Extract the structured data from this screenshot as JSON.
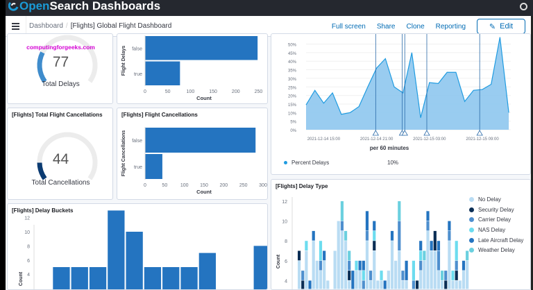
{
  "app": {
    "title": "OpenSearch Dashboards",
    "title_prefix": "Open",
    "title_suffix": "Search Dashboards"
  },
  "nav": {
    "breadcrumb": [
      "Dashboard",
      "[Flights] Global Flight Dashboard"
    ],
    "actions": [
      "Full screen",
      "Share",
      "Clone",
      "Reporting"
    ],
    "edit_label": "Edit"
  },
  "colors": {
    "accent": "#006bb4",
    "bar": "#2474c0",
    "area": "#8ec7ee",
    "line": "#1f9be0"
  },
  "panels": {
    "total_delays": {
      "value": "77",
      "label": "Total Delays",
      "watermark": "computingforgeeks.com",
      "fraction": 0.25
    },
    "flight_delays": {
      "ylabel": "Flight Delays",
      "xlabel": "Count"
    },
    "total_cancellations": {
      "title": "[Flights] Total Flight Cancellations",
      "value": "44",
      "label": "Total Cancellations",
      "fraction": 0.14
    },
    "flight_cancellations": {
      "title": "[Flights] Flight Cancellations",
      "ylabel": "Flight Cancellations",
      "xlabel": "Count"
    },
    "delay_buckets": {
      "title": "[Flights] Delay Buckets",
      "ylabel": "Count"
    },
    "delays_over_time": {
      "xlabel": "per 60 minutes",
      "legend": "Percent Delays",
      "legend_value": "10%"
    },
    "delay_type": {
      "title": "[Flights] Delay Type",
      "ylabel": "Count"
    }
  },
  "chart_data": [
    {
      "type": "bar",
      "orientation": "horizontal",
      "categories": [
        "false",
        "true"
      ],
      "values": [
        248,
        77
      ],
      "xlabel": "Count",
      "ylabel": "Flight Delays",
      "xticks": [
        "0",
        "50",
        "100",
        "150",
        "200",
        "250"
      ],
      "xlim": [
        0,
        260
      ]
    },
    {
      "type": "bar",
      "orientation": "horizontal",
      "categories": [
        "false",
        "true"
      ],
      "values": [
        281,
        44
      ],
      "xlabel": "Count",
      "ylabel": "Flight Cancellations",
      "xticks": [
        "0",
        "50",
        "100",
        "150",
        "200",
        "250",
        "300"
      ],
      "xlim": [
        0,
        300
      ]
    },
    {
      "type": "bar",
      "values": [
        0,
        5,
        5,
        5,
        13,
        10,
        5,
        5,
        5,
        7,
        0,
        0,
        8
      ],
      "ylabel": "Count",
      "yticks": [
        "4",
        "6",
        "8",
        "10",
        "12"
      ],
      "ylim": [
        0,
        13.5
      ]
    },
    {
      "type": "area",
      "x": [
        "2021-12-14 13:00",
        "14:00",
        "15:00",
        "16:00",
        "17:00",
        "18:00",
        "19:00",
        "20:00",
        "21:00",
        "22:00",
        "23:00",
        "2021-12-15 00:00",
        "01:00",
        "02:00",
        "03:00",
        "04:00",
        "05:00",
        "06:00",
        "07:00",
        "08:00",
        "09:00",
        "10:00",
        "11:00",
        "12:00"
      ],
      "values": [
        14.5,
        23,
        15.5,
        21.5,
        9,
        10,
        13.5,
        25,
        36,
        41.5,
        25,
        21.5,
        45,
        7,
        27.5,
        27,
        33.5,
        33.5,
        16.5,
        23,
        23.5,
        26.5,
        54,
        10
      ],
      "xticks": [
        "2021-12-14 15:00",
        "2021-12-14 21:00",
        "2021-12-15 03:00",
        "2021-12-15 09:00"
      ],
      "yticks": [
        "0%",
        "5%",
        "10%",
        "15%",
        "20%",
        "25%",
        "30%",
        "35%",
        "40%",
        "45%",
        "50%"
      ],
      "ylim": [
        0,
        55
      ],
      "annotations_hours_index": [
        7.9,
        10.9,
        11.2,
        13.7,
        19.7
      ],
      "xlabel": "per 60 minutes",
      "series": [
        {
          "name": "Percent Delays"
        }
      ]
    },
    {
      "type": "bar",
      "stacked": true,
      "ylabel": "Count",
      "yticks": [
        "4",
        "6",
        "8",
        "10",
        "12"
      ],
      "ylim": [
        0,
        12
      ],
      "series": [
        {
          "name": "No Delay",
          "color": "#b9dcf3"
        },
        {
          "name": "Security Delay",
          "color": "#0b2e55"
        },
        {
          "name": "Carrier Delay",
          "color": "#4e8fce"
        },
        {
          "name": "NAS Delay",
          "color": "#6cdcef"
        },
        {
          "name": "Late Aircraft Delay",
          "color": "#2474c0"
        },
        {
          "name": "Weather Delay",
          "color": "#6bd0df"
        }
      ],
      "stacks": [
        [
          6,
          1,
          0,
          0,
          0,
          0
        ],
        [
          3,
          1,
          1,
          0,
          0,
          0
        ],
        [
          7,
          0,
          0,
          1,
          0,
          0
        ],
        [
          3,
          0,
          0,
          0,
          1,
          0
        ],
        [
          8,
          0,
          0,
          0,
          1,
          0
        ],
        [
          6,
          0,
          0,
          0,
          0,
          0
        ],
        [
          5,
          0,
          1,
          2,
          0,
          0
        ],
        [
          6,
          0,
          0,
          0,
          1,
          0
        ],
        [
          4,
          0,
          0,
          0,
          0,
          0
        ],
        [
          2,
          1,
          0,
          0,
          0,
          0
        ],
        [
          7,
          0,
          0,
          0,
          0,
          0
        ],
        [
          10,
          0,
          0,
          0,
          0,
          0
        ],
        [
          9,
          0,
          1,
          0,
          0,
          2
        ],
        [
          8,
          0,
          0,
          0,
          0,
          1
        ],
        [
          4,
          1,
          1,
          0,
          0,
          1
        ],
        [
          3,
          0,
          0,
          0,
          2,
          0
        ],
        [
          5,
          0,
          0,
          1,
          0,
          0
        ],
        [
          5,
          0,
          0,
          0,
          1,
          0
        ],
        [
          3,
          0,
          1,
          1,
          1,
          0
        ],
        [
          8,
          0,
          1,
          0,
          2,
          0
        ],
        [
          4,
          0,
          1,
          0,
          0,
          0
        ],
        [
          7,
          1,
          0,
          1,
          1,
          0
        ],
        [
          4,
          0,
          0,
          0,
          0,
          0
        ],
        [
          4,
          0,
          0,
          1,
          0,
          0
        ],
        [
          3,
          0,
          0,
          0,
          1,
          0
        ],
        [
          5,
          0,
          0,
          0,
          0,
          0
        ],
        [
          8,
          0,
          0,
          0,
          1,
          0
        ],
        [
          6,
          0,
          0,
          0,
          0,
          0
        ],
        [
          7,
          0,
          3,
          0,
          0,
          2
        ],
        [
          4,
          0,
          1,
          0,
          0,
          0
        ],
        [
          4,
          0,
          0,
          0,
          2,
          0
        ],
        [
          3,
          0,
          0,
          0,
          0,
          0
        ],
        [
          3,
          0,
          1,
          2,
          0,
          0
        ],
        [
          3,
          1,
          0,
          0,
          0,
          0
        ],
        [
          5,
          0,
          1,
          1,
          1,
          0
        ],
        [
          6,
          0,
          0,
          0,
          0,
          1
        ],
        [
          9,
          0,
          1,
          0,
          1,
          0
        ],
        [
          7,
          0,
          0,
          0,
          1,
          0
        ],
        [
          7,
          2,
          0,
          0,
          0,
          0
        ],
        [
          5,
          0,
          2,
          0,
          1,
          0
        ],
        [
          4,
          0,
          0,
          0,
          0,
          1
        ],
        [
          3,
          1,
          1,
          0,
          0,
          0
        ],
        [
          8,
          0,
          1,
          0,
          1,
          0
        ],
        [
          4,
          0,
          0,
          1,
          0,
          0
        ],
        [
          4,
          1,
          1,
          2,
          0,
          0
        ],
        [
          4,
          0,
          0,
          0,
          0,
          0
        ],
        [
          5,
          0,
          0,
          0,
          1,
          0
        ],
        [
          6,
          0,
          0,
          0,
          0,
          1
        ]
      ]
    }
  ]
}
